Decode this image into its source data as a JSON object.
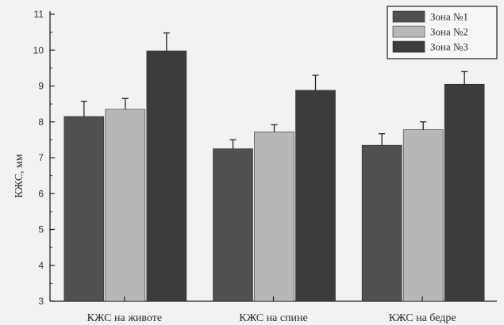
{
  "chart_data": {
    "type": "bar",
    "title": "",
    "xlabel": "",
    "ylabel": "КЖС, мм",
    "ylim": [
      3,
      11
    ],
    "yticks": [
      3,
      4,
      5,
      6,
      7,
      8,
      9,
      10,
      11
    ],
    "categories": [
      "КЖС на животе",
      "КЖС на спине",
      "КЖС на бедре"
    ],
    "series": [
      {
        "name": "Зона №1",
        "values": [
          8.15,
          7.25,
          7.35
        ],
        "errors": [
          0.42,
          0.25,
          0.32
        ],
        "color": "#505050"
      },
      {
        "name": "Зона №2",
        "values": [
          8.35,
          7.72,
          7.78
        ],
        "errors": [
          0.3,
          0.2,
          0.22
        ],
        "color": "#b8b8b8"
      },
      {
        "name": "Зона №3",
        "values": [
          9.98,
          8.88,
          9.05
        ],
        "errors": [
          0.5,
          0.42,
          0.35
        ],
        "color": "#3c3c3c"
      }
    ],
    "grid": false,
    "legend": "top-right"
  },
  "colors": {
    "background": "#f2f2f2",
    "axis": "#222222",
    "error_bar": "#222222"
  }
}
